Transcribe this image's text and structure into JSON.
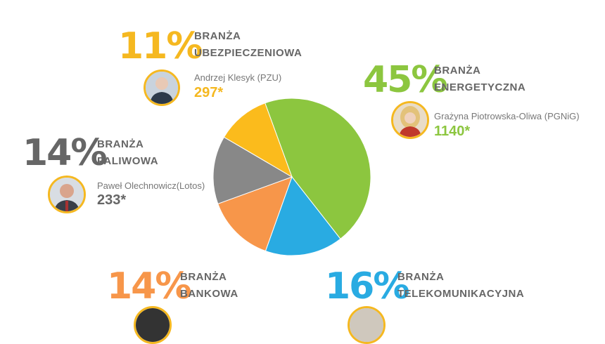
{
  "chart_data": {
    "type": "pie",
    "slices": [
      {
        "key": "energy",
        "percent": 45,
        "color": "#8cc63f"
      },
      {
        "key": "telecom",
        "percent": 16,
        "color": "#29abe2"
      },
      {
        "key": "bank",
        "percent": 14,
        "color": "#f7964a"
      },
      {
        "key": "fuel",
        "percent": 14,
        "color": "#888888"
      },
      {
        "key": "insurance",
        "percent": 11,
        "color": "#fbbb1c"
      }
    ]
  },
  "labels": {
    "insurance": {
      "pct": "11%",
      "line1": "BRANŻA",
      "line2": "UBEZPIECZENIOWA",
      "person": "Andrzej Klesyk (PZU)",
      "value": "297*",
      "color": "#f5b820"
    },
    "energy": {
      "pct": "45%",
      "line1": "BRANŻA",
      "line2": "ENERGETYCZNA",
      "person": "Grażyna Piotrowska-Oliwa (PGNiG)",
      "value": "1140*",
      "color": "#8cc63f"
    },
    "fuel": {
      "pct": "14%",
      "line1": "BRANŻA",
      "line2": "PALIWOWA",
      "person": "Paweł Olechnowicz(Lotos)",
      "value": "233*",
      "color": "#666666"
    },
    "bank": {
      "pct": "14%",
      "line1": "BRANŻA",
      "line2": "BANKOWA",
      "color": "#f7964a"
    },
    "telecom": {
      "pct": "16%",
      "line1": "BRANŻA",
      "line2": "TELEKOMUNIKACYJNA",
      "color": "#29abe2"
    }
  }
}
